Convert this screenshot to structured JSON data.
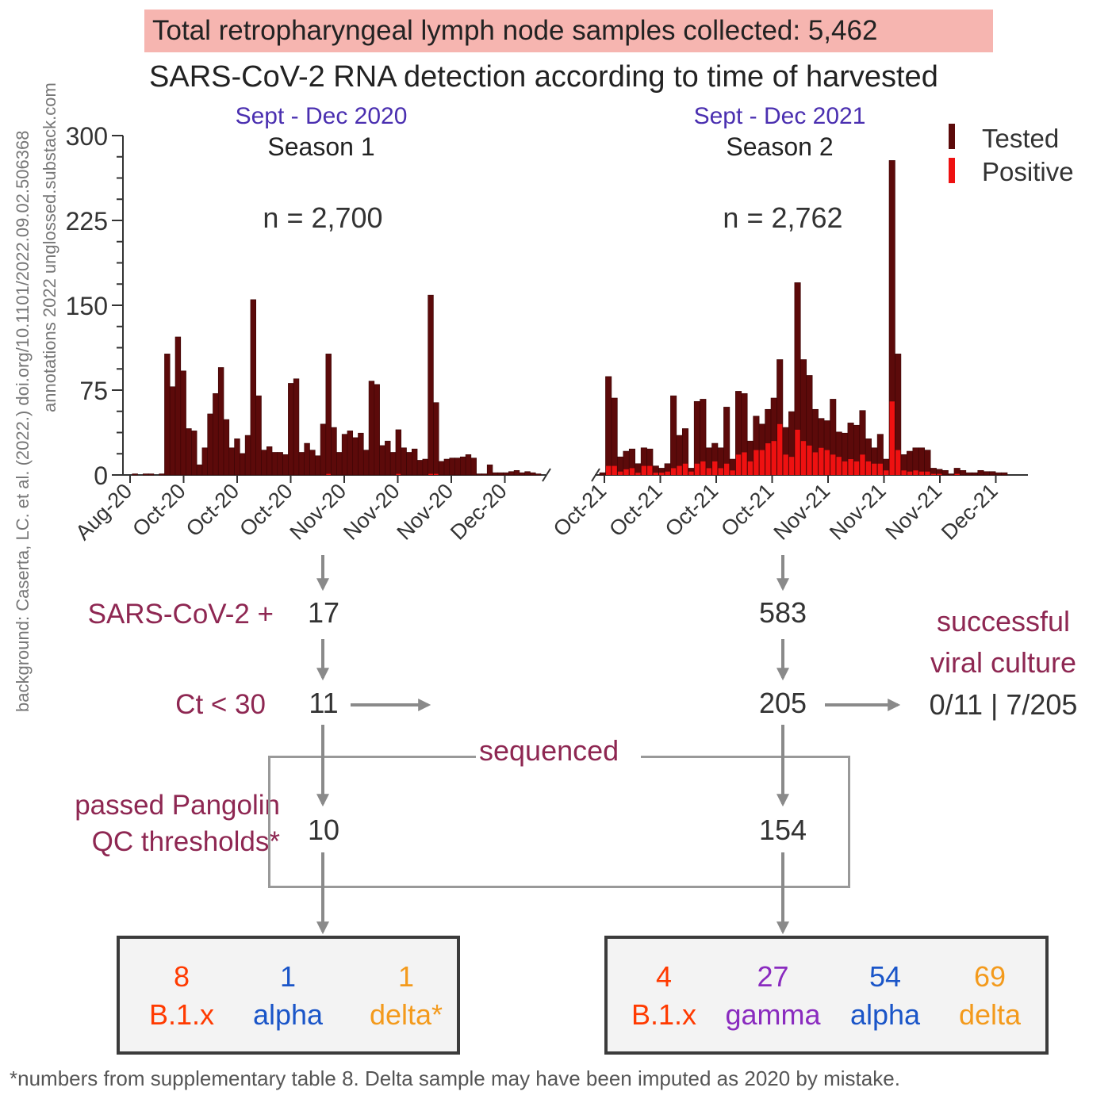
{
  "headline": "Total retropharyngeal lymph node samples collected: 5,462",
  "subtitle": "SARS-CoV-2 RNA detection according to time of harvested",
  "side_credit": {
    "line1": "background: Caserta, LC. et al. (2022.) doi.org/10.1101/2022.09.02.506368",
    "line2": "annotations 2022 unglossed.substack.com"
  },
  "colors": {
    "tested": "#5c0a0a",
    "positive": "#ee1111",
    "flow_label": "#8e2752",
    "season_dates": "#4a2fb0",
    "headline_bg": "#f6b5b0",
    "b1x": "#ff3a00",
    "alpha": "#1a55c8",
    "delta": "#f39a1c",
    "gamma": "#8a2bbf"
  },
  "chart_data": {
    "type": "bar",
    "ylim": [
      0,
      300
    ],
    "yticks": [
      "0",
      "75",
      "150",
      "225",
      "300"
    ],
    "legend": {
      "position": "top-right",
      "entries": [
        "Tested",
        "Positive"
      ]
    },
    "seasons": [
      {
        "dates": "Sept - Dec 2020",
        "label": "Season 1",
        "n_label": "n = 2,700",
        "xticks": [
          "Aug-20",
          "Oct-20",
          "Oct-20",
          "Oct-20",
          "Nov-20",
          "Nov-20",
          "Nov-20",
          "Dec-20"
        ],
        "tested": [
          0,
          1,
          0,
          1,
          1,
          0,
          1,
          107,
          78,
          122,
          92,
          41,
          39,
          9,
          24,
          54,
          72,
          95,
          49,
          24,
          32,
          19,
          35,
          155,
          70,
          22,
          25,
          20,
          20,
          18,
          81,
          85,
          20,
          28,
          22,
          17,
          45,
          107,
          42,
          20,
          36,
          39,
          33,
          37,
          22,
          83,
          80,
          26,
          30,
          20,
          40,
          24,
          20,
          23,
          13,
          14,
          159,
          64,
          12,
          14,
          15,
          15,
          16,
          18,
          15,
          1,
          1,
          9,
          2,
          2,
          2,
          3,
          4,
          2,
          3,
          2,
          1
        ],
        "positive": [
          0,
          0,
          0,
          0,
          0,
          0,
          0,
          0,
          0,
          0,
          0,
          0,
          0,
          0,
          0,
          0,
          0,
          0,
          0,
          0,
          0,
          0,
          0,
          0,
          0,
          0,
          0,
          0,
          0,
          0,
          0,
          0,
          0,
          0,
          0,
          0,
          0,
          1,
          0,
          0,
          0,
          0,
          0,
          0,
          0,
          0,
          0,
          0,
          0,
          0,
          1,
          0,
          0,
          0,
          0,
          0,
          1,
          1,
          0,
          0,
          0,
          0,
          0,
          0,
          0,
          0,
          0,
          0,
          0,
          0,
          0,
          0,
          0,
          0,
          0,
          0,
          0
        ]
      },
      {
        "dates": "Sept - Dec 2021",
        "label": "Season 2",
        "n_label": "n = 2,762",
        "xticks": [
          "Oct-21",
          "Oct-21",
          "Oct-21",
          "Oct-21",
          "Nov-21",
          "Nov-21",
          "Nov-21",
          "Dec-21"
        ],
        "tested": [
          2,
          87,
          68,
          16,
          21,
          23,
          10,
          24,
          23,
          8,
          6,
          10,
          70,
          35,
          41,
          6,
          65,
          67,
          24,
          28,
          24,
          60,
          14,
          74,
          72,
          30,
          52,
          45,
          58,
          68,
          102,
          42,
          56,
          170,
          102,
          88,
          58,
          50,
          48,
          67,
          38,
          37,
          46,
          44,
          57,
          32,
          24,
          36,
          14,
          278,
          107,
          18,
          21,
          24,
          24,
          22,
          6,
          5,
          4,
          1,
          6,
          4,
          2,
          2,
          4,
          3,
          3,
          2,
          2
        ],
        "positive": [
          0,
          8,
          8,
          3,
          5,
          6,
          2,
          8,
          8,
          2,
          2,
          3,
          6,
          8,
          10,
          3,
          10,
          12,
          6,
          12,
          6,
          10,
          4,
          18,
          20,
          12,
          22,
          22,
          28,
          30,
          45,
          18,
          16,
          40,
          30,
          26,
          20,
          24,
          22,
          18,
          16,
          12,
          14,
          12,
          18,
          12,
          10,
          10,
          4,
          65,
          22,
          4,
          3,
          4,
          3,
          3,
          1,
          1,
          0,
          0,
          1,
          0,
          0,
          0,
          0,
          0,
          0,
          0,
          0
        ]
      }
    ]
  },
  "flow": {
    "labels": {
      "positive": "SARS-CoV-2 +",
      "ct": "Ct < 30",
      "pangolin_line1": "passed Pangolin",
      "pangolin_line2": "QC thresholds*",
      "sequenced": "sequenced",
      "culture_line1": "successful",
      "culture_line2": "viral culture"
    },
    "season1": {
      "positive": "17",
      "ct": "11",
      "pangolin": "10"
    },
    "season2": {
      "positive": "583",
      "ct": "205",
      "pangolin": "154"
    },
    "culture_result": "0/11 | 7/205"
  },
  "variants": {
    "season1": [
      {
        "count": "8",
        "name": "B.1.x",
        "color": "#ff3a00"
      },
      {
        "count": "1",
        "name": "alpha",
        "color": "#1a55c8"
      },
      {
        "count": "1",
        "name": "delta*",
        "color": "#f39a1c"
      }
    ],
    "season2": [
      {
        "count": "4",
        "name": "B.1.x",
        "color": "#ff3a00"
      },
      {
        "count": "27",
        "name": "gamma",
        "color": "#8a2bbf"
      },
      {
        "count": "54",
        "name": "alpha",
        "color": "#1a55c8"
      },
      {
        "count": "69",
        "name": "delta",
        "color": "#f39a1c"
      }
    ]
  },
  "footnote": "*numbers from supplementary table 8. Delta sample may have been imputed as 2020 by mistake."
}
